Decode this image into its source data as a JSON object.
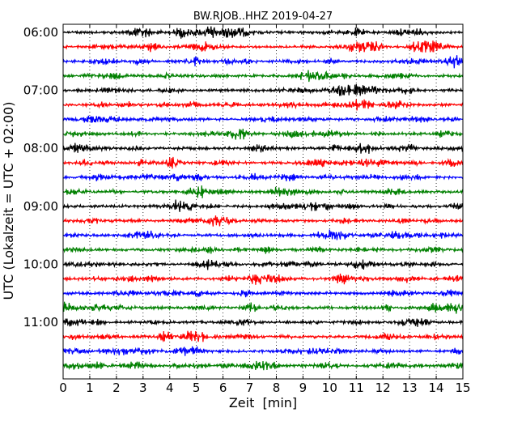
{
  "chart_data": {
    "type": "line",
    "title": "BW.RJOB..HHZ 2019-04-27",
    "xlabel": "Zeit  [min]",
    "ylabel": "UTC (Lokalzeit = UTC + 02:00)",
    "xlim": [
      0,
      15
    ],
    "x_ticks": [
      "0",
      "1",
      "2",
      "3",
      "4",
      "5",
      "6",
      "7",
      "8",
      "9",
      "10",
      "11",
      "12",
      "13",
      "14",
      "15"
    ],
    "y_ticks": [
      {
        "label": "06:00",
        "row": 0
      },
      {
        "label": "07:00",
        "row": 4
      },
      {
        "label": "08:00",
        "row": 8
      },
      {
        "label": "09:00",
        "row": 12
      },
      {
        "label": "10:00",
        "row": 16
      },
      {
        "label": "11:00",
        "row": 20
      }
    ],
    "row_interval_min": 15,
    "row_count": 24,
    "color_cycle": [
      "#000000",
      "#ff0000",
      "#0000ff",
      "#008000"
    ],
    "grid": "x dotted"
  }
}
